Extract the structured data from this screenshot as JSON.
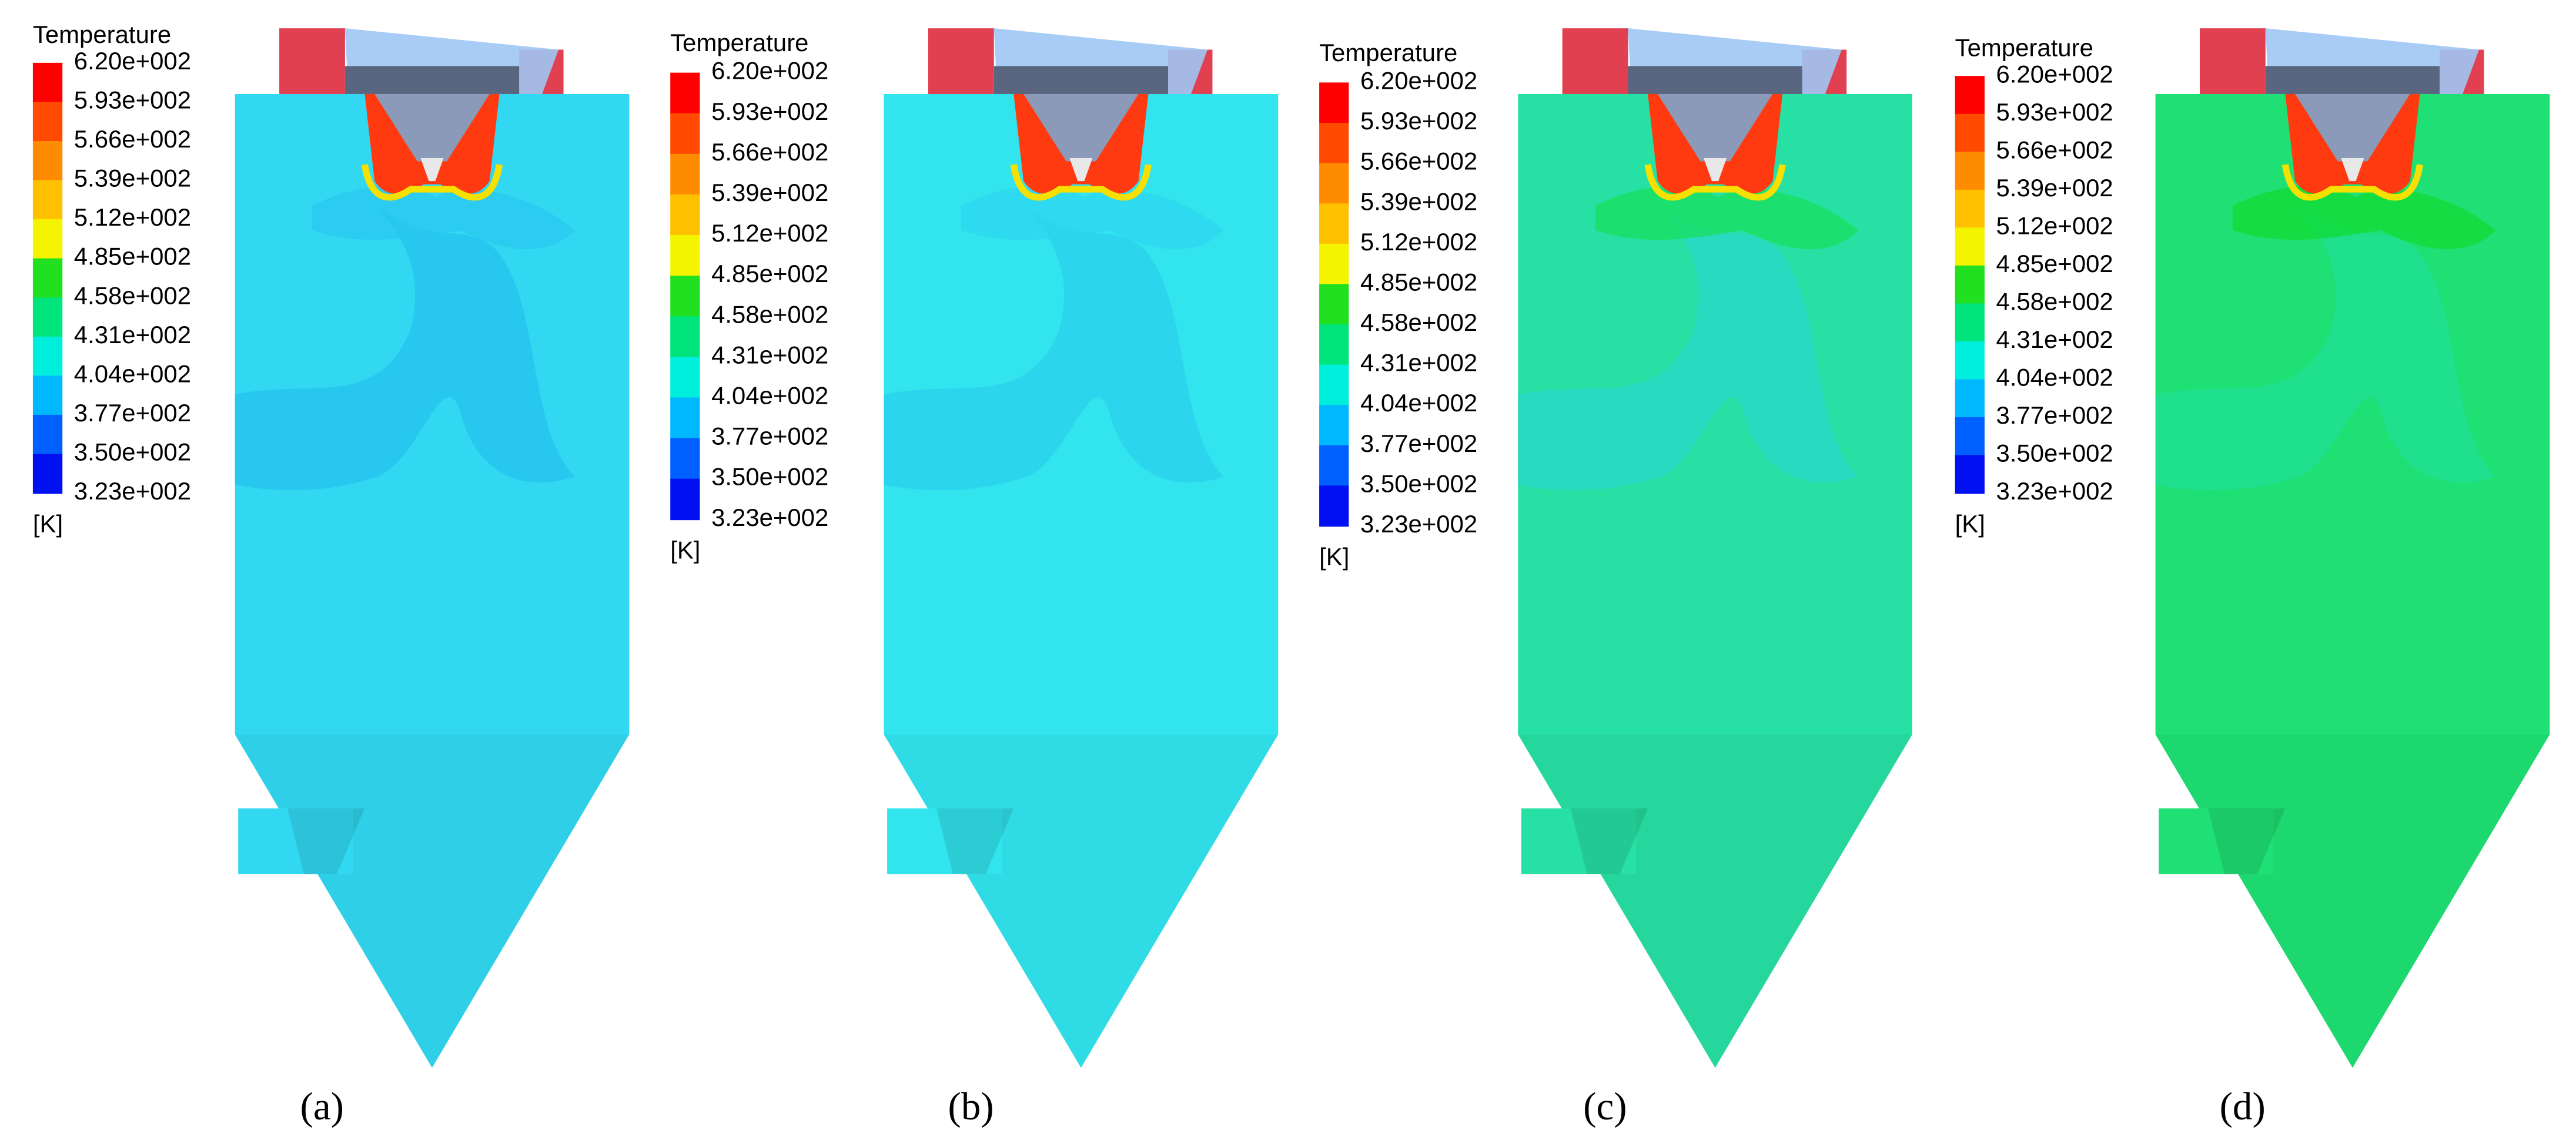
{
  "panels": [
    {
      "legend": {
        "title": "Temperature",
        "labels": [
          "6.20e+002",
          "5.93e+002",
          "5.66e+002",
          "5.39e+002",
          "5.12e+002",
          "4.85e+002",
          "4.58e+002",
          "4.31e+002",
          "4.04e+002",
          "3.77e+002",
          "3.50e+002",
          "3.23e+002"
        ],
        "unit": "[K]"
      },
      "caption": "(a)"
    },
    {
      "legend": {
        "title": "Temperature",
        "labels": [
          "6.20e+002",
          "5.93e+002",
          "5.66e+002",
          "5.39e+002",
          "5.12e+002",
          "4.85e+002",
          "4.58e+002",
          "4.31e+002",
          "4.04e+002",
          "3.77e+002",
          "3.50e+002",
          "3.23e+002"
        ],
        "unit": "[K]"
      },
      "caption": "(b)"
    },
    {
      "legend": {
        "title": "Temperature",
        "labels": [
          "6.20e+002",
          "5.93e+002",
          "5.66e+002",
          "5.39e+002",
          "5.12e+002",
          "4.85e+002",
          "4.58e+002",
          "4.31e+002",
          "4.04e+002",
          "3.77e+002",
          "3.50e+002",
          "3.23e+002"
        ],
        "unit": "[K]"
      },
      "caption": "(c)"
    },
    {
      "legend": {
        "title": "Temperature",
        "labels": [
          "6.20e+002",
          "5.93e+002",
          "5.66e+002",
          "5.39e+002",
          "5.12e+002",
          "4.85e+002",
          "4.58e+002",
          "4.31e+002",
          "4.04e+002",
          "3.77e+002",
          "3.50e+002",
          "3.23e+002"
        ],
        "unit": "[K]"
      },
      "caption": "(d)"
    }
  ]
}
